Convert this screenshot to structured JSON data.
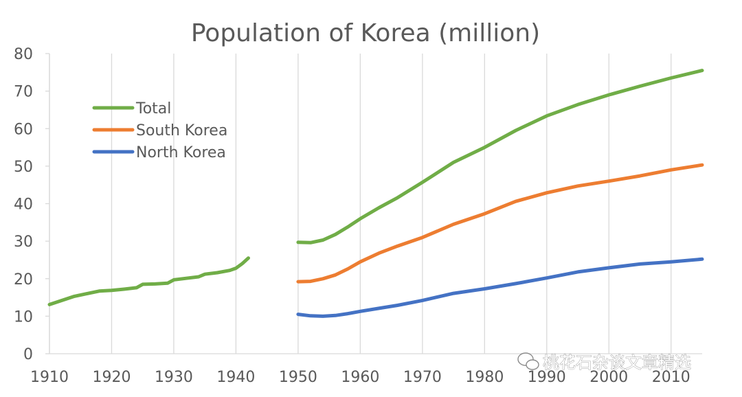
{
  "watermark": "桃花石杂谈文章精选",
  "chart_data": {
    "type": "line",
    "title": "Population of Korea (million)",
    "xlabel": "",
    "ylabel": "",
    "xlim": [
      1910,
      2015
    ],
    "ylim": [
      0,
      80
    ],
    "yticks": [
      0,
      10,
      20,
      30,
      40,
      50,
      60,
      70,
      80
    ],
    "xticks": [
      1910,
      1920,
      1930,
      1940,
      1950,
      1960,
      1970,
      1980,
      1990,
      2000,
      2010
    ],
    "grid": "vertical",
    "legend_position": "top-left",
    "series": [
      {
        "name": "Total",
        "color": "#70AD47",
        "segments": [
          [
            [
              1910,
              13.1
            ],
            [
              1912,
              14.2
            ],
            [
              1914,
              15.3
            ],
            [
              1916,
              16.0
            ],
            [
              1918,
              16.7
            ],
            [
              1920,
              16.9
            ],
            [
              1922,
              17.2
            ],
            [
              1924,
              17.6
            ],
            [
              1925,
              18.5
            ],
            [
              1927,
              18.6
            ],
            [
              1929,
              18.8
            ],
            [
              1930,
              19.7
            ],
            [
              1932,
              20.1
            ],
            [
              1934,
              20.5
            ],
            [
              1935,
              21.2
            ],
            [
              1937,
              21.6
            ],
            [
              1939,
              22.2
            ],
            [
              1940,
              22.8
            ],
            [
              1941,
              24.0
            ],
            [
              1942,
              25.5
            ]
          ],
          [
            [
              1950,
              29.7
            ],
            [
              1952,
              29.6
            ],
            [
              1954,
              30.3
            ],
            [
              1956,
              31.8
            ],
            [
              1958,
              33.8
            ],
            [
              1960,
              36.0
            ],
            [
              1963,
              38.9
            ],
            [
              1966,
              41.6
            ],
            [
              1970,
              45.7
            ],
            [
              1975,
              51.0
            ],
            [
              1980,
              55.0
            ],
            [
              1985,
              59.5
            ],
            [
              1990,
              63.4
            ],
            [
              1995,
              66.4
            ],
            [
              2000,
              69.0
            ],
            [
              2005,
              71.3
            ],
            [
              2010,
              73.5
            ],
            [
              2015,
              75.5
            ]
          ]
        ]
      },
      {
        "name": "South Korea",
        "color": "#ED7D31",
        "segments": [
          [
            [
              1950,
              19.2
            ],
            [
              1952,
              19.3
            ],
            [
              1954,
              20.0
            ],
            [
              1956,
              21.0
            ],
            [
              1958,
              22.6
            ],
            [
              1960,
              24.5
            ],
            [
              1963,
              26.8
            ],
            [
              1966,
              28.7
            ],
            [
              1970,
              31.0
            ],
            [
              1975,
              34.5
            ],
            [
              1980,
              37.3
            ],
            [
              1985,
              40.6
            ],
            [
              1990,
              42.9
            ],
            [
              1995,
              44.7
            ],
            [
              2000,
              46.0
            ],
            [
              2005,
              47.4
            ],
            [
              2010,
              49.0
            ],
            [
              2015,
              50.3
            ]
          ]
        ]
      },
      {
        "name": "North Korea",
        "color": "#4472C4",
        "segments": [
          [
            [
              1950,
              10.5
            ],
            [
              1952,
              10.1
            ],
            [
              1954,
              10.0
            ],
            [
              1956,
              10.2
            ],
            [
              1958,
              10.7
            ],
            [
              1960,
              11.3
            ],
            [
              1963,
              12.1
            ],
            [
              1966,
              12.9
            ],
            [
              1970,
              14.2
            ],
            [
              1975,
              16.1
            ],
            [
              1980,
              17.3
            ],
            [
              1985,
              18.7
            ],
            [
              1990,
              20.2
            ],
            [
              1995,
              21.8
            ],
            [
              2000,
              22.9
            ],
            [
              2005,
              23.9
            ],
            [
              2010,
              24.5
            ],
            [
              2015,
              25.2
            ]
          ]
        ]
      }
    ]
  }
}
